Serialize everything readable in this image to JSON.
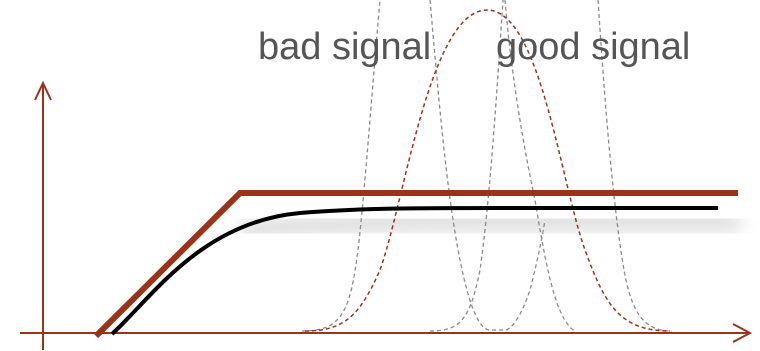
{
  "labels": {
    "bad": "bad signal",
    "good": "good signal"
  },
  "colors": {
    "axis": "#9b3319",
    "threshold": "#9b3319",
    "response_curve": "#000000",
    "distribution_main": "#9b3319",
    "distribution_alt": "#8a8a8a"
  }
}
